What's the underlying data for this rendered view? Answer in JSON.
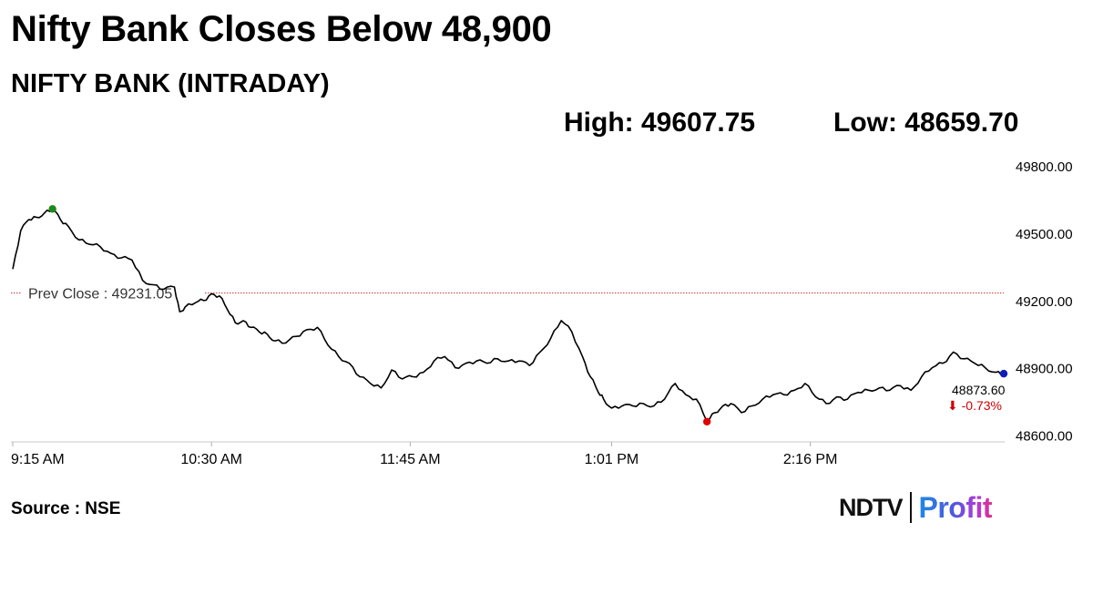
{
  "headline": "Nifty Bank Closes Below 48,900",
  "subtitle": "NIFTY BANK (INTRADAY)",
  "stats": {
    "high": "High: 49607.75",
    "low": "Low: 48659.70"
  },
  "source": "Source : NSE",
  "logo": {
    "brand": "NDTV",
    "product": "Profit"
  },
  "chart_data": {
    "type": "line",
    "title": "NIFTY BANK (INTRADAY)",
    "xlabel": "",
    "ylabel": "",
    "x_ticks": [
      "9:15 AM",
      "10:30 AM",
      "11:45 AM",
      "1:01 PM",
      "2:16 PM"
    ],
    "y_ticks": [
      49800,
      49500,
      49200,
      48900,
      48600
    ],
    "y_tick_labels": [
      "49800.00",
      "49500.00",
      "49200.00",
      "48900.00",
      "48600.00"
    ],
    "ylim": [
      48570,
      49800
    ],
    "grid": false,
    "prev_close": {
      "label": "Prev Close : 49231.05",
      "value": 49231.05,
      "color": "#c0392b"
    },
    "last": {
      "value_label": "48873.60",
      "change_label": "⬇ -0.73%",
      "value": 48873.6,
      "color": "#0d1db8",
      "change_color": "#cc0000"
    },
    "high_marker": {
      "value": 49607.75,
      "color": "#1a8a1a"
    },
    "low_marker": {
      "value": 48659.7,
      "color": "#e00000"
    },
    "series": [
      {
        "x": [
          "9:15",
          "9:18",
          "9:21",
          "9:24",
          "9:27",
          "9:30",
          "9:33",
          "9:36",
          "9:40",
          "9:44",
          "9:48",
          "9:52",
          "9:56",
          "10:00",
          "10:04",
          "10:08",
          "10:12",
          "10:16",
          "10:18",
          "10:20",
          "10:24",
          "10:27",
          "10:30",
          "10:33",
          "10:36",
          "10:39",
          "10:42",
          "10:45",
          "10:48",
          "10:51",
          "10:54",
          "10:58",
          "11:02",
          "11:06",
          "11:10",
          "11:14",
          "11:18",
          "11:22",
          "11:26",
          "11:30",
          "11:34",
          "11:38",
          "11:42",
          "11:46",
          "11:50",
          "11:54",
          "11:58",
          "12:02",
          "12:06",
          "12:10",
          "12:14",
          "12:18",
          "12:22",
          "12:26",
          "12:30",
          "12:34",
          "12:38",
          "12:42",
          "12:46",
          "12:50",
          "12:53",
          "12:56",
          "12:58",
          "13:01",
          "13:05",
          "13:09",
          "13:13",
          "13:17",
          "13:21",
          "13:25",
          "13:29",
          "13:33",
          "13:37",
          "13:40",
          "13:43",
          "13:46",
          "13:50",
          "13:54",
          "13:58",
          "14:02",
          "14:06",
          "14:10",
          "14:14",
          "14:18",
          "14:22",
          "14:26",
          "14:30",
          "14:34",
          "14:38",
          "14:42",
          "14:46",
          "14:50",
          "14:54",
          "14:58",
          "15:02",
          "15:06",
          "15:10",
          "15:14",
          "15:18",
          "15:22",
          "15:26",
          "15:29"
        ],
        "values": [
          49340,
          49510,
          49560,
          49570,
          49590,
          49607.75,
          49560,
          49530,
          49470,
          49450,
          49440,
          49410,
          49390,
          49380,
          49290,
          49270,
          49250,
          49260,
          49150,
          49170,
          49190,
          49200,
          49230,
          49220,
          49160,
          49100,
          49110,
          49080,
          49060,
          49050,
          49020,
          49010,
          49040,
          49070,
          49080,
          49000,
          48950,
          48920,
          48860,
          48830,
          48810,
          48890,
          48850,
          48860,
          48880,
          48930,
          48950,
          48900,
          48920,
          48930,
          48920,
          48940,
          48930,
          48930,
          48910,
          48970,
          49030,
          49110,
          49060,
          48950,
          48860,
          48790,
          48760,
          48720,
          48730,
          48730,
          48740,
          48730,
          48760,
          48830,
          48780,
          48760,
          48659.7,
          48700,
          48730,
          48740,
          48700,
          48730,
          48760,
          48780,
          48780,
          48800,
          48830,
          48770,
          48740,
          48770,
          48760,
          48790,
          48800,
          48810,
          48800,
          48820,
          48800,
          48860,
          48900,
          48920,
          48970,
          48940,
          48920,
          48900,
          48880,
          48873.6
        ]
      }
    ]
  }
}
